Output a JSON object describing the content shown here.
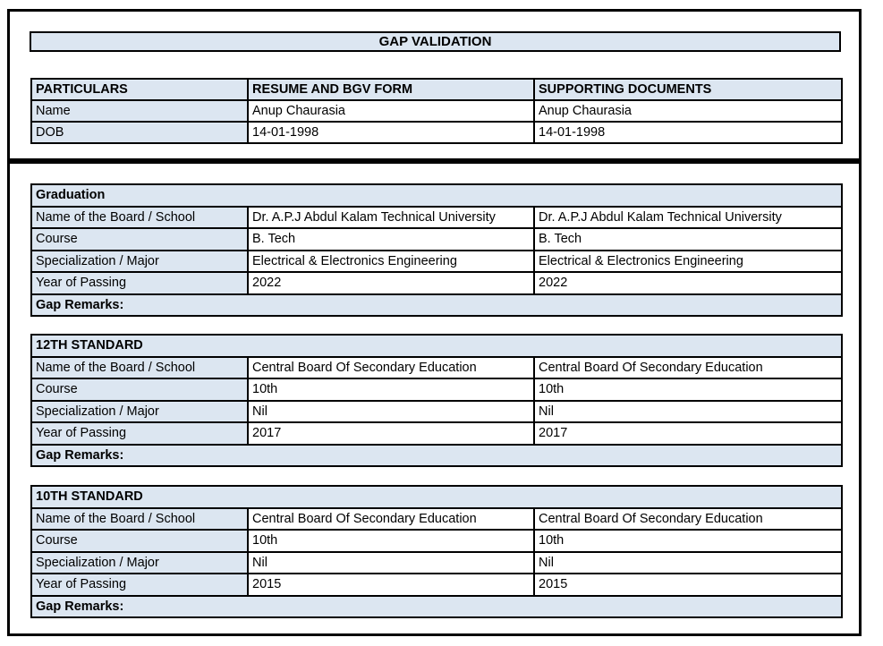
{
  "title": "GAP VALIDATION",
  "colors": {
    "header_fill": "#dce6f1",
    "border": "#000000",
    "page_background": "#ffffff"
  },
  "particulars_table": {
    "headers": [
      "PARTICULARS",
      "RESUME AND BGV FORM",
      "SUPPORTING DOCUMENTS"
    ],
    "rows": [
      {
        "label": "Name",
        "resume": "Anup Chaurasia",
        "supporting": "Anup Chaurasia"
      },
      {
        "label": "DOB",
        "resume": "14-01-1998",
        "supporting": "14-01-1998"
      }
    ]
  },
  "education_sections": [
    {
      "title": "Graduation",
      "rows": [
        {
          "label": "Name of the Board / School",
          "resume": "Dr. A.P.J Abdul Kalam Technical University",
          "supporting": "Dr. A.P.J Abdul Kalam Technical University"
        },
        {
          "label": "Course",
          "resume": "B. Tech",
          "supporting": "B. Tech"
        },
        {
          "label": "Specialization / Major",
          "resume": "Electrical & Electronics Engineering",
          "supporting": "Electrical & Electronics Engineering"
        },
        {
          "label": "Year of Passing",
          "resume": "2022",
          "supporting": "2022"
        }
      ],
      "gap_remarks_label": "Gap Remarks:"
    },
    {
      "title": "12TH STANDARD",
      "rows": [
        {
          "label": "Name of the Board / School",
          "resume": "Central Board Of Secondary Education",
          "supporting": "Central Board Of Secondary Education"
        },
        {
          "label": "Course",
          "resume": "10th",
          "supporting": "10th"
        },
        {
          "label": "Specialization / Major",
          "resume": "Nil",
          "supporting": "Nil"
        },
        {
          "label": "Year of Passing",
          "resume": "2017",
          "supporting": "2017"
        }
      ],
      "gap_remarks_label": "Gap Remarks:"
    },
    {
      "title": "10TH STANDARD",
      "rows": [
        {
          "label": "Name of the Board / School",
          "resume": "Central Board Of Secondary Education",
          "supporting": "Central Board Of Secondary Education"
        },
        {
          "label": "Course",
          "resume": "10th",
          "supporting": "10th"
        },
        {
          "label": "Specialization / Major",
          "resume": "Nil",
          "supporting": "Nil"
        },
        {
          "label": "Year of Passing",
          "resume": "2015",
          "supporting": "2015"
        }
      ],
      "gap_remarks_label": "Gap Remarks:"
    }
  ]
}
